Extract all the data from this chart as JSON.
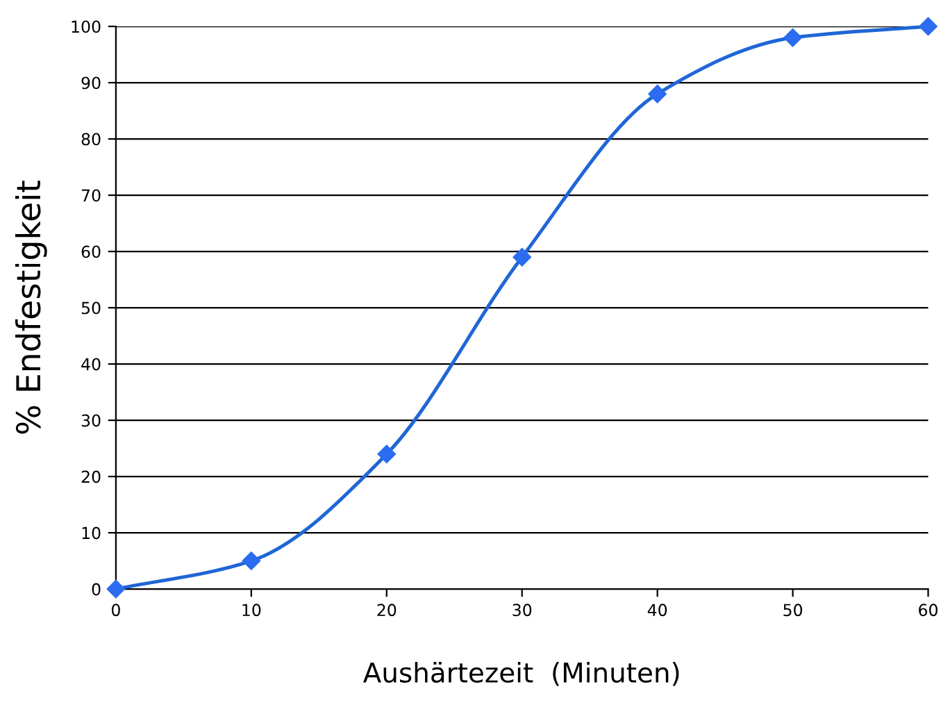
{
  "chart_data": {
    "type": "line",
    "xlabel": "Aushärtezeit  (Minuten)",
    "ylabel": "% Endfestigkeit",
    "x": [
      0,
      10,
      20,
      30,
      40,
      50,
      60
    ],
    "series": [
      {
        "color": "#1f66d6",
        "values": [
          0,
          5,
          24,
          59,
          88,
          98,
          100
        ]
      }
    ],
    "xlim": [
      0,
      60
    ],
    "xticks": [
      0,
      10,
      20,
      30,
      40,
      50,
      60
    ],
    "ylim": [
      0,
      100
    ],
    "yticks": [
      0,
      10,
      20,
      30,
      40,
      50,
      60,
      70,
      80,
      90,
      100
    ],
    "grid": "y",
    "marker": "diamond",
    "line_style": "solid",
    "legend": false
  }
}
